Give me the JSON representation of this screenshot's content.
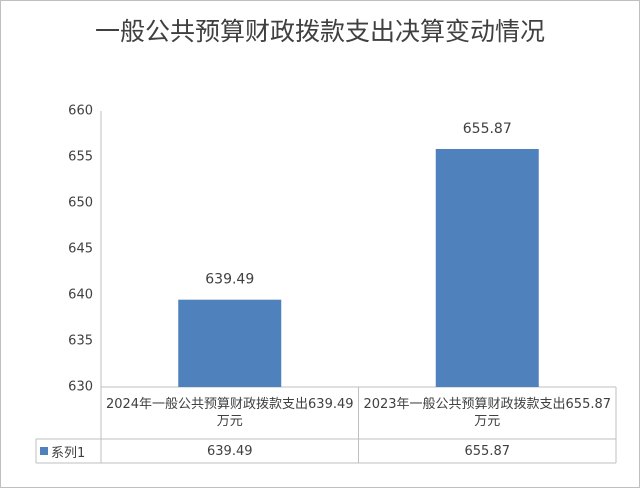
{
  "chart_data": {
    "type": "bar",
    "title": "一般公共预算财政拨款支出决算变动情况",
    "categories": [
      "2024年一般公共预算财政拨款支出639.49万元",
      "2023年一般公共预算财政拨款支出655.87万元"
    ],
    "series": [
      {
        "name": "系列1",
        "color": "#4f81bd",
        "values": [
          639.49,
          655.87
        ]
      }
    ],
    "ylim": [
      630,
      660
    ],
    "yticks": [
      630,
      635,
      640,
      645,
      650,
      655,
      660
    ],
    "grid": false
  }
}
